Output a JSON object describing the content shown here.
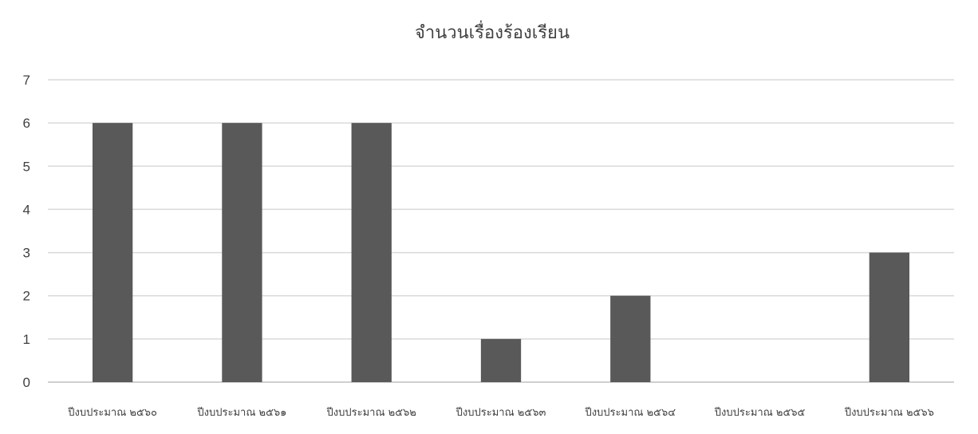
{
  "chart_data": {
    "type": "bar",
    "title": "จำนวนเรื่องร้องเรียน",
    "xlabel": "",
    "ylabel": "",
    "categories": [
      "ปีงบประมาณ ๒๕๖๐",
      "ปีงบประมาณ ๒๕๖๑",
      "ปีงบประมาณ ๒๕๖๒",
      "ปีงบประมาณ ๒๕๖๓",
      "ปีงบประมาณ ๒๕๖๔",
      "ปีงบประมาณ ๒๕๖๕",
      "ปีงบประมาณ ๒๕๖๖"
    ],
    "values": [
      6,
      6,
      6,
      1,
      2,
      0,
      3
    ],
    "yticks": [
      "0",
      "1",
      "2",
      "3",
      "4",
      "5",
      "6",
      "7"
    ],
    "ylim": [
      0,
      7
    ],
    "grid": true,
    "legend": "none",
    "bar_color": "#595959"
  }
}
